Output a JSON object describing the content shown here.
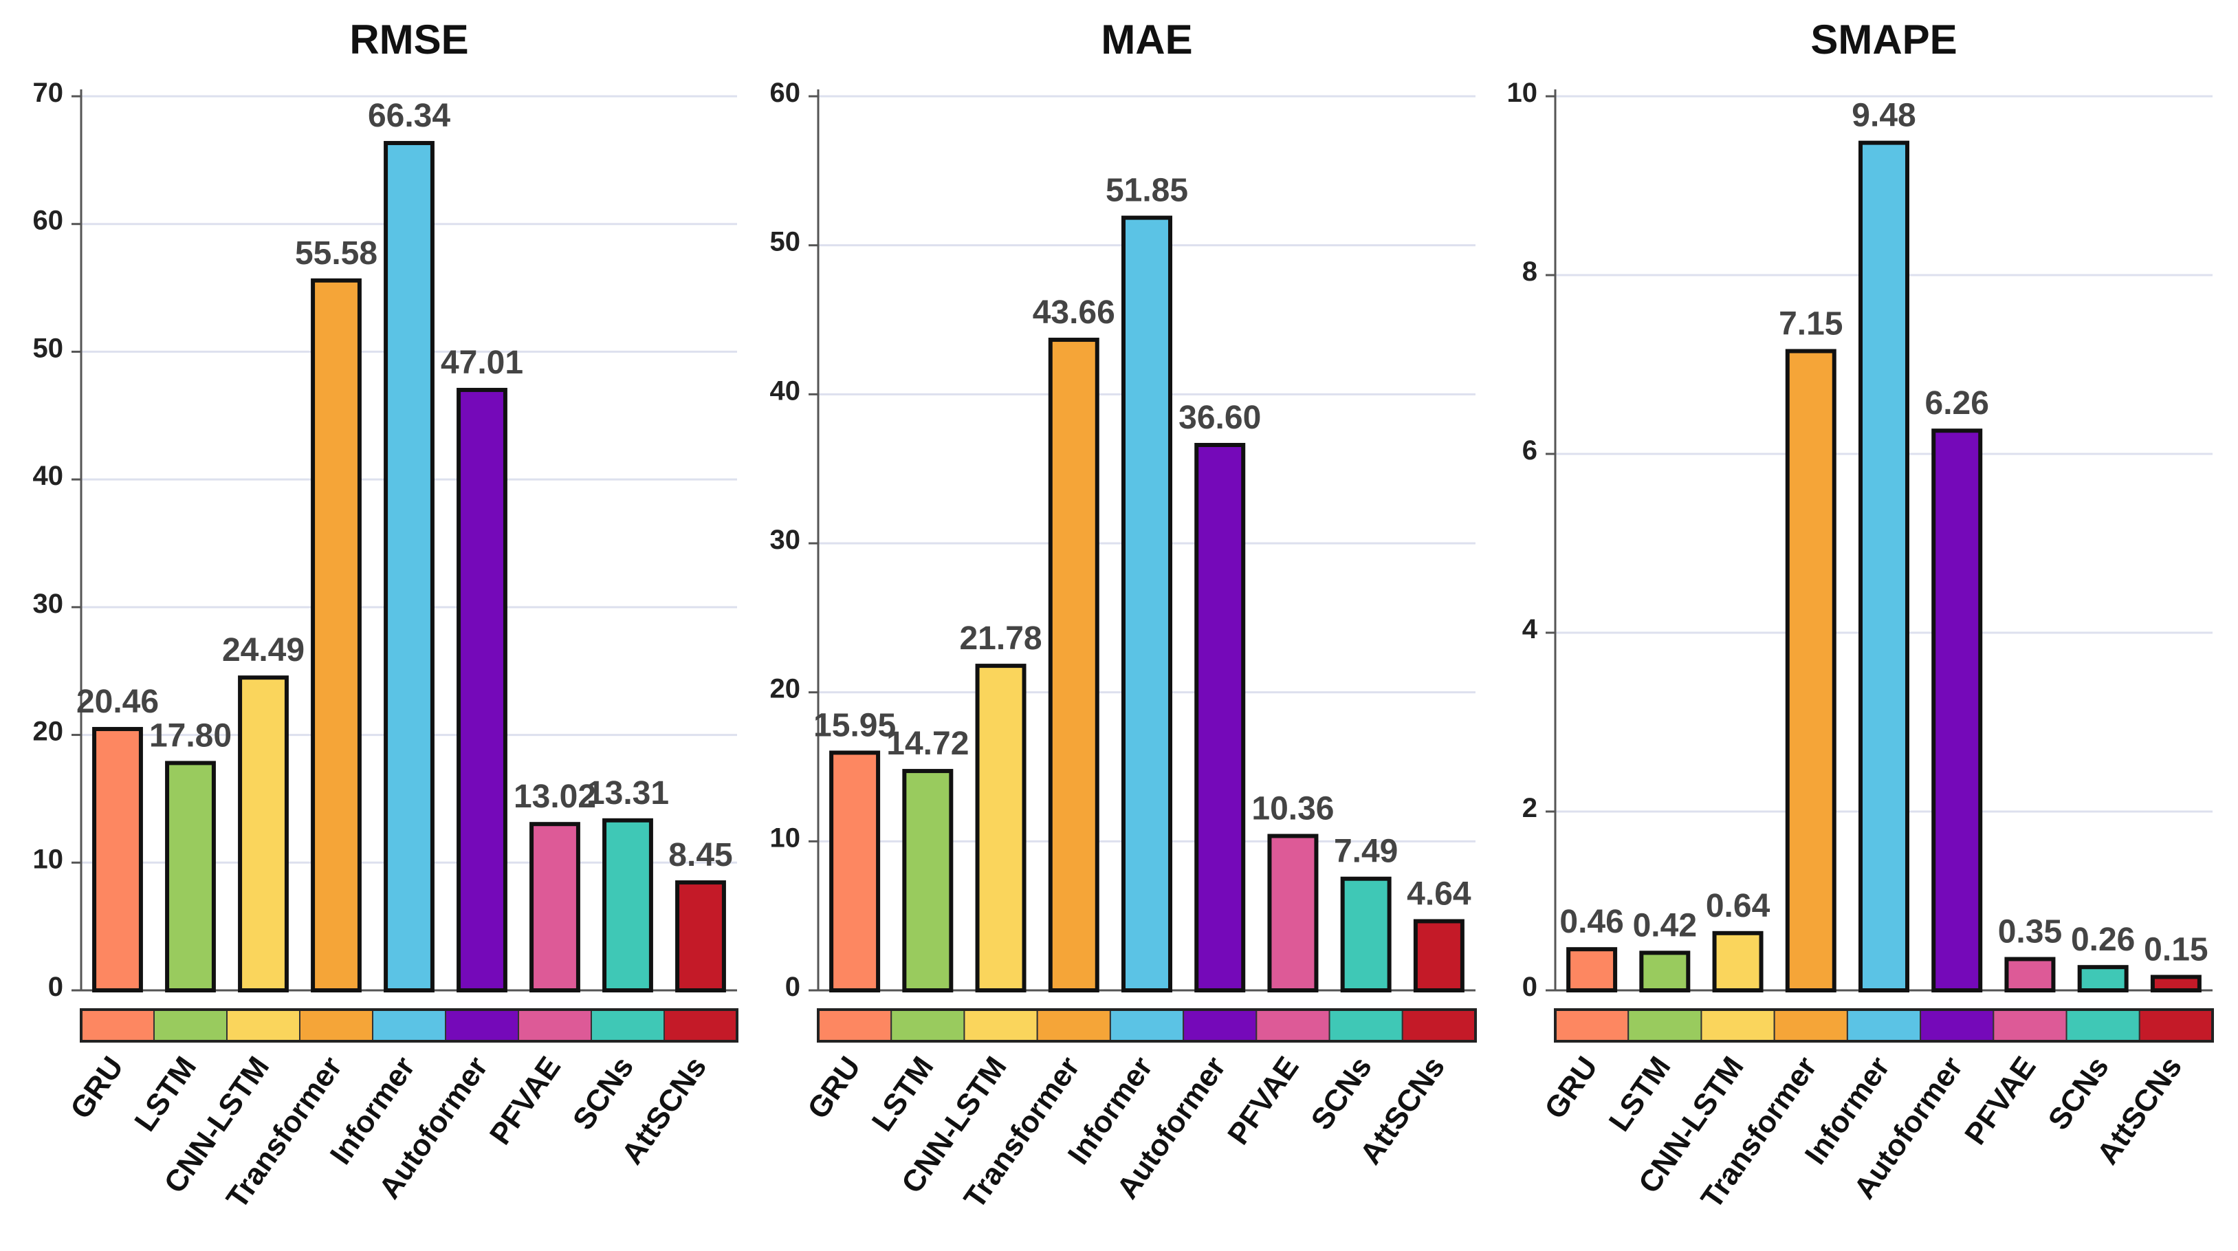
{
  "chart_data": [
    {
      "type": "bar",
      "title": "RMSE",
      "categories": [
        "GRU",
        "LSTM",
        "CNN-LSTM",
        "Transformer",
        "Informer",
        "Autoformer",
        "PFVAE",
        "SCNs",
        "AttSCNs"
      ],
      "values": [
        20.46,
        17.8,
        24.49,
        55.58,
        66.34,
        47.01,
        13.02,
        13.31,
        8.45
      ],
      "value_labels": [
        "20.46",
        "17.80",
        "24.49",
        "55.58",
        "66.34",
        "47.01",
        "13.02",
        "13.31",
        "8.45"
      ],
      "ylim": [
        0,
        70
      ],
      "yticks": [
        "0",
        "10",
        "20",
        "30",
        "40",
        "50",
        "60",
        "70"
      ],
      "grid": true,
      "xlabel": "",
      "ylabel": ""
    },
    {
      "type": "bar",
      "title": "MAE",
      "categories": [
        "GRU",
        "LSTM",
        "CNN-LSTM",
        "Transformer",
        "Informer",
        "Autoformer",
        "PFVAE",
        "SCNs",
        "AttSCNs"
      ],
      "values": [
        15.95,
        14.72,
        21.78,
        43.66,
        51.85,
        36.6,
        10.36,
        7.49,
        4.64
      ],
      "value_labels": [
        "15.95",
        "14.72",
        "21.78",
        "43.66",
        "51.85",
        "36.60",
        "10.36",
        "7.49",
        "4.64"
      ],
      "ylim": [
        0,
        60
      ],
      "yticks": [
        "0",
        "10",
        "20",
        "30",
        "40",
        "50",
        "60"
      ],
      "grid": true,
      "xlabel": "",
      "ylabel": ""
    },
    {
      "type": "bar",
      "title": "SMAPE",
      "categories": [
        "GRU",
        "LSTM",
        "CNN-LSTM",
        "Transformer",
        "Informer",
        "Autoformer",
        "PFVAE",
        "SCNs",
        "AttSCNs"
      ],
      "values": [
        0.46,
        0.42,
        0.64,
        7.15,
        9.48,
        6.26,
        0.35,
        0.26,
        0.15
      ],
      "value_labels": [
        "0.46",
        "0.42",
        "0.64",
        "7.15",
        "9.48",
        "6.26",
        "0.35",
        "0.26",
        "0.15"
      ],
      "ylim": [
        0,
        10
      ],
      "yticks": [
        "0",
        "2",
        "4",
        "6",
        "8",
        "10"
      ],
      "grid": true,
      "xlabel": "",
      "ylabel": ""
    }
  ],
  "colors": [
    "#fd8761",
    "#99cb5e",
    "#fad55c",
    "#f5a538",
    "#5bc3e5",
    "#7509b9",
    "#dd5a97",
    "#3fc8b6",
    "#c41a28"
  ]
}
